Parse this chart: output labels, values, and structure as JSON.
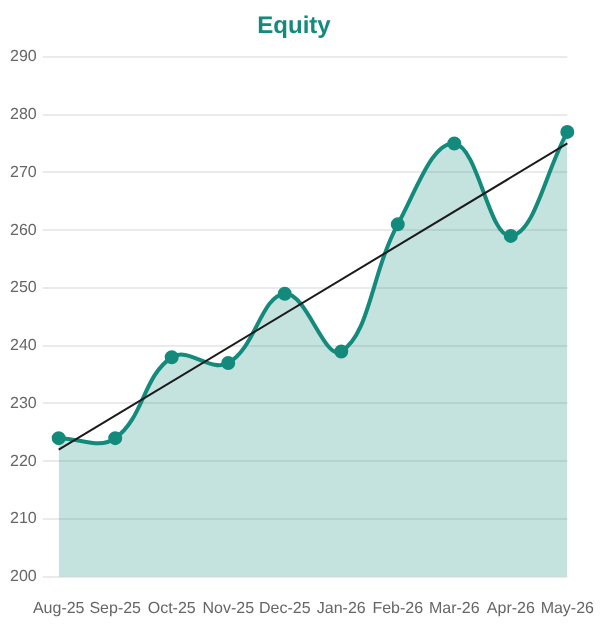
{
  "chart_data": {
    "type": "area",
    "title": "Equity",
    "categories": [
      "Aug-25",
      "Sep-25",
      "Oct-25",
      "Nov-25",
      "Dec-25",
      "Jan-26",
      "Feb-26",
      "Mar-26",
      "Apr-26",
      "May-26"
    ],
    "series": [
      {
        "color": "#138a7c",
        "values": [
          224,
          224,
          238,
          237,
          249,
          239,
          261,
          275,
          259,
          277
        ],
        "marker": "circle"
      },
      {
        "type": "line",
        "color": "#1a1a1a",
        "x": [
          "Aug-25",
          "May-26"
        ],
        "values": [
          222,
          275
        ],
        "marker": "none"
      }
    ],
    "ylim": [
      200,
      290
    ],
    "yticks": [
      200,
      210,
      220,
      230,
      240,
      250,
      260,
      270,
      280,
      290
    ],
    "grid": "y",
    "legend": false
  }
}
